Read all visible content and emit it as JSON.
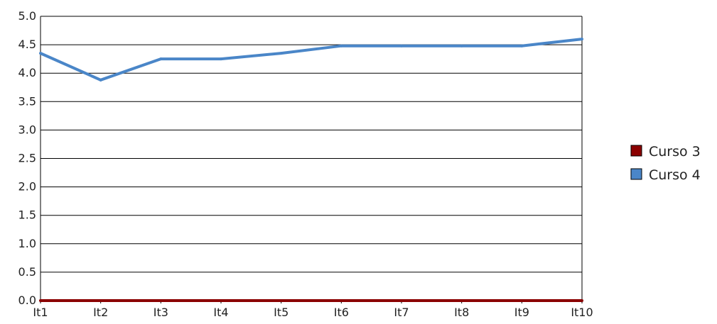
{
  "chart_data": {
    "type": "line",
    "categories": [
      "It1",
      "It2",
      "It3",
      "It4",
      "It5",
      "It6",
      "It7",
      "It8",
      "It9",
      "It10"
    ],
    "series": [
      {
        "name": "Curso 3",
        "color": "#8b0000",
        "values": [
          0.0,
          0.0,
          0.0,
          0.0,
          0.0,
          0.0,
          0.0,
          0.0,
          0.0,
          0.0
        ]
      },
      {
        "name": "Curso 4",
        "color": "#4a86c8",
        "values": [
          4.35,
          3.88,
          4.25,
          4.25,
          4.35,
          4.48,
          4.48,
          4.48,
          4.48,
          4.6
        ]
      }
    ],
    "y_ticks": [
      "0.0",
      "0.5",
      "1.0",
      "1.5",
      "2.0",
      "2.5",
      "3.0",
      "3.5",
      "4.0",
      "4.5",
      "5.0"
    ],
    "ylim": [
      0,
      5
    ],
    "grid": true,
    "legend_position": "right"
  }
}
